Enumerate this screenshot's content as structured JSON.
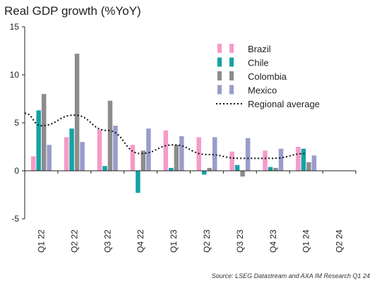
{
  "chart_data": {
    "type": "bar",
    "title": "Real GDP growth (%YoY)",
    "source": "Source: LSEG Datastream and AXA IM Research Q1 24",
    "categories": [
      "Q1 22",
      "Q2 22",
      "Q3 22",
      "Q4 22",
      "Q1 23",
      "Q2 23",
      "Q3 23",
      "Q4 23",
      "Q1 24",
      "Q2 24"
    ],
    "ylim": [
      -5,
      15
    ],
    "yticks": [
      -5,
      0,
      5,
      10,
      15
    ],
    "legend_position": "top-right",
    "series": [
      {
        "name": "Brazil",
        "color": "#f59bc8",
        "values": [
          1.5,
          3.5,
          4.3,
          2.7,
          4.2,
          3.5,
          2.0,
          2.1,
          2.5,
          null
        ]
      },
      {
        "name": "Chile",
        "color": "#17a2a5",
        "values": [
          6.3,
          4.4,
          0.5,
          -2.3,
          0.3,
          -0.4,
          0.6,
          0.4,
          2.3,
          null
        ]
      },
      {
        "name": "Colombia",
        "color": "#8c8c8c",
        "values": [
          8.0,
          12.2,
          7.3,
          2.1,
          2.7,
          0.3,
          -0.6,
          0.3,
          0.9,
          null
        ]
      },
      {
        "name": "Mexico",
        "color": "#9a9ccc",
        "values": [
          2.7,
          3.0,
          4.7,
          4.4,
          3.6,
          3.5,
          3.4,
          2.3,
          1.6,
          null
        ]
      }
    ],
    "line": {
      "name": "Regional average",
      "color": "#111111",
      "values": [
        4.7,
        5.8,
        4.2,
        1.8,
        2.7,
        1.7,
        1.3,
        1.3,
        1.8,
        null
      ],
      "start_value": 6.0
    }
  }
}
